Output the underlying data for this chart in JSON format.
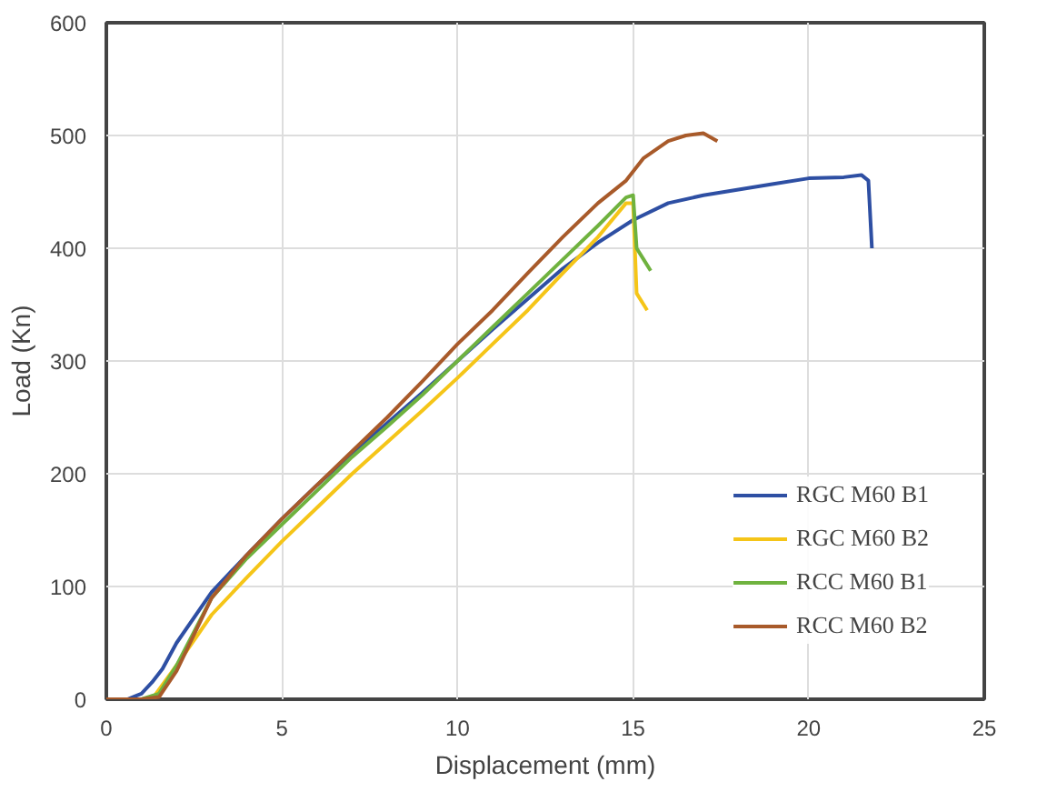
{
  "chart_data": {
    "type": "line",
    "xlabel": "Displacement (mm)",
    "ylabel": "Load (Kn)",
    "xlim": [
      0,
      25
    ],
    "ylim": [
      0,
      600
    ],
    "xticks": [
      0,
      5,
      10,
      15,
      20,
      25
    ],
    "yticks": [
      0,
      100,
      200,
      300,
      400,
      500,
      600
    ],
    "grid": true,
    "legend": "bottom right",
    "marker": "none",
    "line_style": "solid",
    "series": [
      {
        "name": "RGC M60 B1",
        "color": "#2e4fa3",
        "x": [
          0,
          0.6,
          1,
          1.3,
          1.6,
          2,
          3,
          4,
          5,
          6,
          7,
          8,
          9,
          10,
          11,
          12,
          13,
          14,
          15,
          16,
          17,
          18,
          19,
          20,
          21,
          21.5,
          21.7,
          21.8
        ],
        "values": [
          0,
          0,
          5,
          15,
          27,
          50,
          95,
          128,
          160,
          190,
          218,
          245,
          272,
          300,
          328,
          355,
          382,
          405,
          425,
          440,
          447,
          452,
          457,
          462,
          463,
          465,
          460,
          400
        ]
      },
      {
        "name": "RGC M60 B2",
        "color": "#f5c518",
        "x": [
          0,
          1,
          1.3,
          2,
          3,
          4,
          5,
          6,
          7,
          8,
          9,
          10,
          11,
          12,
          13,
          14,
          14.8,
          15,
          15.1,
          15.3,
          15.4
        ],
        "values": [
          0,
          0,
          0,
          30,
          75,
          108,
          140,
          170,
          200,
          228,
          256,
          285,
          315,
          345,
          378,
          410,
          440,
          440,
          360,
          350,
          345
        ]
      },
      {
        "name": "RCC M60 B1",
        "color": "#6fb23f",
        "x": [
          0,
          1,
          1.5,
          2,
          3,
          4,
          5,
          6,
          7,
          8,
          9,
          10,
          11,
          12,
          13,
          14,
          14.8,
          15,
          15.1,
          15.3,
          15.5
        ],
        "values": [
          0,
          0,
          5,
          30,
          90,
          125,
          155,
          185,
          215,
          242,
          270,
          300,
          330,
          360,
          390,
          420,
          445,
          447,
          400,
          390,
          380
        ]
      },
      {
        "name": "RCC M60 B2",
        "color": "#a85a2a",
        "x": [
          0,
          1,
          1.5,
          2,
          3,
          4,
          5,
          6,
          7,
          8,
          9,
          10,
          11,
          12,
          13,
          14,
          14.8,
          15.3,
          16,
          16.5,
          17,
          17.4
        ],
        "values": [
          0,
          0,
          2,
          25,
          90,
          128,
          160,
          190,
          220,
          250,
          282,
          315,
          345,
          378,
          410,
          440,
          460,
          480,
          495,
          500,
          502,
          495
        ]
      }
    ]
  }
}
